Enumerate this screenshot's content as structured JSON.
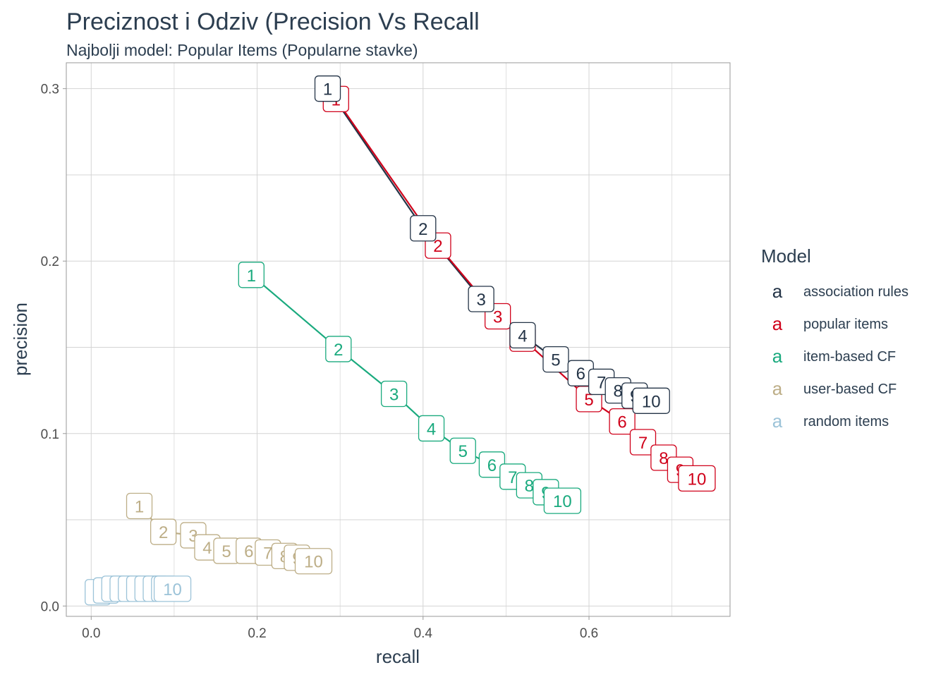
{
  "title": "Preciznost i Odziv (Precision Vs Recall",
  "subtitle": "Najbolji model: Popular Items (Popularne stavke)",
  "chart_data": {
    "type": "line",
    "xlabel": "recall",
    "ylabel": "precision",
    "xlim": [
      -0.03,
      0.77
    ],
    "ylim": [
      -0.006,
      0.315
    ],
    "xticks": [
      "0.0",
      "0.2",
      "0.4",
      "0.6"
    ],
    "yticks": [
      "0.0",
      "0.1",
      "0.2",
      "0.3"
    ],
    "grid": true,
    "legend_title": "Model",
    "legend_key": "a",
    "legend_position": "right",
    "series": [
      {
        "name": "association rules",
        "color": "#243447",
        "labels": [
          "1",
          "2",
          "3",
          "4",
          "5",
          "6",
          "7",
          "8",
          "9",
          "10"
        ],
        "x": [
          0.285,
          0.4,
          0.47,
          0.52,
          0.56,
          0.59,
          0.615,
          0.635,
          0.655,
          0.675
        ],
        "y": [
          0.3,
          0.219,
          0.178,
          0.157,
          0.143,
          0.135,
          0.13,
          0.125,
          0.122,
          0.119
        ]
      },
      {
        "name": "popular items",
        "color": "#d0021b",
        "labels": [
          "1",
          "2",
          "3",
          "4",
          "5",
          "6",
          "7",
          "8",
          "9",
          "10"
        ],
        "x": [
          0.295,
          0.418,
          0.49,
          0.52,
          0.6,
          0.64,
          0.665,
          0.69,
          0.71,
          0.73
        ],
        "y": [
          0.294,
          0.209,
          0.168,
          0.155,
          0.12,
          0.107,
          0.095,
          0.086,
          0.079,
          0.074
        ]
      },
      {
        "name": "item-based CF",
        "color": "#1aaa7e",
        "labels": [
          "1",
          "2",
          "3",
          "4",
          "5",
          "6",
          "7",
          "8",
          "9",
          "10"
        ],
        "x": [
          0.193,
          0.298,
          0.365,
          0.41,
          0.448,
          0.483,
          0.508,
          0.528,
          0.548,
          0.568
        ],
        "y": [
          0.192,
          0.149,
          0.123,
          0.103,
          0.09,
          0.082,
          0.075,
          0.07,
          0.066,
          0.061
        ]
      },
      {
        "name": "user-based CF",
        "color": "#bdae87",
        "labels": [
          "1",
          "2",
          "3",
          "4",
          "5",
          "6",
          "7",
          "8",
          "9",
          "10"
        ],
        "x": [
          0.058,
          0.087,
          0.123,
          0.14,
          0.163,
          0.19,
          0.213,
          0.233,
          0.248,
          0.268
        ],
        "y": [
          0.058,
          0.043,
          0.041,
          0.034,
          0.032,
          0.032,
          0.031,
          0.029,
          0.028,
          0.026
        ]
      },
      {
        "name": "random items",
        "color": "#9cc3d8",
        "labels": [
          "1",
          "2",
          "3",
          "4",
          "5",
          "6",
          "7",
          "8",
          "9",
          "10"
        ],
        "x": [
          0.008,
          0.018,
          0.028,
          0.038,
          0.048,
          0.058,
          0.068,
          0.078,
          0.088,
          0.098
        ],
        "y": [
          0.008,
          0.009,
          0.01,
          0.01,
          0.01,
          0.01,
          0.01,
          0.01,
          0.01,
          0.01
        ]
      }
    ]
  }
}
